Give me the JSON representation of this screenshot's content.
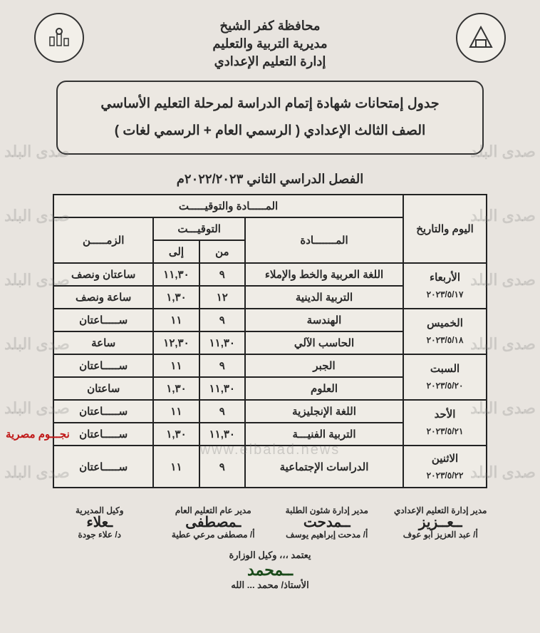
{
  "header": {
    "governorate": "محافظة كفر الشيخ",
    "directorate": "مديرية التربية والتعليم",
    "department": "إدارة التعليم الإعدادي"
  },
  "title_box": {
    "line1": "جدول إمتحانات شهادة إتمام الدراسة لمرحلة التعليم الأساسي",
    "line2": "الصف الثالث الإعدادي ( الرسمي العام + الرسمي لغات )"
  },
  "semester": "الفصل الدراسي الثاني ٢٠٢٢/٢٠٢٣م",
  "table": {
    "header_group": "المـــــادة والتوقيـــــت",
    "col_day": "اليوم والتاريخ",
    "col_subject": "المـــــــادة",
    "col_time_group": "التوقيـــت",
    "col_from": "من",
    "col_to": "إلى",
    "col_duration": "الزمـــــن",
    "rows": [
      {
        "day": "الأربعاء",
        "date": "٢٠٢٣/٥/١٧",
        "subjects": [
          {
            "subject": "اللغة العربية والخط والإملاء",
            "from": "٩",
            "to": "١١,٣٠",
            "duration": "ساعتان ونصف"
          },
          {
            "subject": "التربية الدينية",
            "from": "١٢",
            "to": "١,٣٠",
            "duration": "ساعة ونصف"
          }
        ]
      },
      {
        "day": "الخميس",
        "date": "٢٠٢٣/٥/١٨",
        "subjects": [
          {
            "subject": "الهندسة",
            "from": "٩",
            "to": "١١",
            "duration": "ســـــاعتان"
          },
          {
            "subject": "الحاسب الآلي",
            "from": "١١,٣٠",
            "to": "١٢,٣٠",
            "duration": "ساعة"
          }
        ]
      },
      {
        "day": "السبت",
        "date": "٢٠٢٣/٥/٢٠",
        "subjects": [
          {
            "subject": "الجبر",
            "from": "٩",
            "to": "١١",
            "duration": "ســـــاعتان"
          },
          {
            "subject": "العلوم",
            "from": "١١,٣٠",
            "to": "١,٣٠",
            "duration": "ساعتان"
          }
        ]
      },
      {
        "day": "الأحد",
        "date": "٢٠٢٣/٥/٢١",
        "subjects": [
          {
            "subject": "اللغة الإنجليزية",
            "from": "٩",
            "to": "١١",
            "duration": "ســـــاعتان"
          },
          {
            "subject": "التربية الفنيـــة",
            "from": "١١,٣٠",
            "to": "١,٣٠",
            "duration": "ســـــاعتان"
          }
        ]
      },
      {
        "day": "الاثنين",
        "date": "٢٠٢٣/٥/٢٢",
        "subjects": [
          {
            "subject": "الدراسات الإجتماعية",
            "from": "٩",
            "to": "١١",
            "duration": "ســـــاعتان"
          }
        ]
      }
    ]
  },
  "signatures": {
    "s1_title": "مدير إدارة التعليم الإعدادي",
    "s1_name": "أ/ عبد العزيز أبو عوف",
    "s2_title": "مدير إدارة شئون الطلبة",
    "s2_name": "أ/ مدحت إبراهيم يوسف",
    "s3_title": "مدير عام التعليم العام",
    "s3_name": "أ/ مصطفى مرعي عطية",
    "s4_title": "وكيل المديرية",
    "s4_name": "د/ علاء جودة",
    "bottom_title": "يعتمد ،،، وكيل الوزارة",
    "bottom_name": "الأستاذ/ محمد ... الله"
  },
  "red_caption": "نجـــوم مصرية",
  "watermark_side": "صدى البلد",
  "watermark_center": "www.elbalad.news"
}
